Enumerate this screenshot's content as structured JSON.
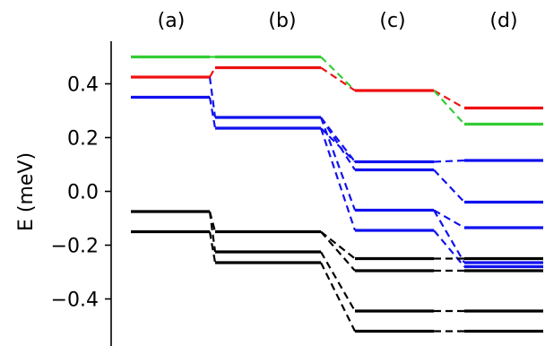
{
  "chart_data": {
    "type": "line",
    "ylabel": "E (meV)",
    "ylim": [
      -0.53,
      0.56
    ],
    "yticks": [
      {
        "value": 0.4,
        "label": "0.4"
      },
      {
        "value": 0.2,
        "label": "0.2"
      },
      {
        "value": 0.0,
        "label": "0.0"
      },
      {
        "value": -0.2,
        "label": "−0.2"
      },
      {
        "value": -0.4,
        "label": "−0.4"
      }
    ],
    "columns": [
      "(a)",
      "(b)",
      "(c)",
      "(d)"
    ],
    "grid": false,
    "legend": "none",
    "colors": {
      "green": "#33cc33",
      "red": "#ee1111",
      "blue": "#1111ee",
      "black": "#000000"
    },
    "levels": [
      {
        "id": "a-green",
        "column": 0,
        "energy": 0.5,
        "color": "green"
      },
      {
        "id": "a-red",
        "column": 0,
        "energy": 0.425,
        "color": "red"
      },
      {
        "id": "a-blue",
        "column": 0,
        "energy": 0.35,
        "color": "blue"
      },
      {
        "id": "a-black1",
        "column": 0,
        "energy": -0.075,
        "color": "black"
      },
      {
        "id": "a-black2",
        "column": 0,
        "energy": -0.15,
        "color": "black"
      },
      {
        "id": "b-green",
        "column": 1,
        "energy": 0.5,
        "color": "green"
      },
      {
        "id": "b-red",
        "column": 1,
        "energy": 0.46,
        "color": "red"
      },
      {
        "id": "b-blue1",
        "column": 1,
        "energy": 0.275,
        "color": "blue"
      },
      {
        "id": "b-blue2",
        "column": 1,
        "energy": 0.235,
        "color": "blue"
      },
      {
        "id": "b-black1",
        "column": 1,
        "energy": -0.15,
        "color": "black"
      },
      {
        "id": "b-black2",
        "column": 1,
        "energy": -0.225,
        "color": "black"
      },
      {
        "id": "b-black3",
        "column": 1,
        "energy": -0.265,
        "color": "black"
      },
      {
        "id": "c-red",
        "column": 2,
        "energy": 0.375,
        "color": "red"
      },
      {
        "id": "c-blue1",
        "column": 2,
        "energy": 0.11,
        "color": "blue"
      },
      {
        "id": "c-blue2",
        "column": 2,
        "energy": 0.08,
        "color": "blue"
      },
      {
        "id": "c-blue3",
        "column": 2,
        "energy": -0.07,
        "color": "blue"
      },
      {
        "id": "c-blue4",
        "column": 2,
        "energy": -0.145,
        "color": "blue"
      },
      {
        "id": "c-black1",
        "column": 2,
        "energy": -0.25,
        "color": "black"
      },
      {
        "id": "c-black2",
        "column": 2,
        "energy": -0.295,
        "color": "black"
      },
      {
        "id": "c-black3",
        "column": 2,
        "energy": -0.445,
        "color": "black"
      },
      {
        "id": "c-black4",
        "column": 2,
        "energy": -0.52,
        "color": "black"
      },
      {
        "id": "d-red",
        "column": 3,
        "energy": 0.31,
        "color": "red"
      },
      {
        "id": "d-green",
        "column": 3,
        "energy": 0.25,
        "color": "green"
      },
      {
        "id": "d-blue1",
        "column": 3,
        "energy": 0.115,
        "color": "blue"
      },
      {
        "id": "d-blue2",
        "column": 3,
        "energy": -0.04,
        "color": "blue"
      },
      {
        "id": "d-blue3",
        "column": 3,
        "energy": -0.135,
        "color": "blue"
      },
      {
        "id": "d-blue4",
        "column": 3,
        "energy": -0.265,
        "color": "blue"
      },
      {
        "id": "d-blue5",
        "column": 3,
        "energy": -0.28,
        "color": "blue"
      },
      {
        "id": "d-black1",
        "column": 3,
        "energy": -0.25,
        "color": "black"
      },
      {
        "id": "d-black2",
        "column": 3,
        "energy": -0.295,
        "color": "black"
      },
      {
        "id": "d-black3",
        "column": 3,
        "energy": -0.445,
        "color": "black"
      },
      {
        "id": "d-black4",
        "column": 3,
        "energy": -0.52,
        "color": "black"
      }
    ],
    "connections": [
      {
        "from": "a-green",
        "to": "b-green",
        "color": "green"
      },
      {
        "from": "a-red",
        "to": "b-red",
        "color": "red"
      },
      {
        "from": "a-red",
        "to": "b-blue1",
        "color": "blue"
      },
      {
        "from": "a-blue",
        "to": "b-blue2",
        "color": "blue"
      },
      {
        "from": "a-black1",
        "to": "b-black1",
        "color": "black"
      },
      {
        "from": "a-black1",
        "to": "b-black2",
        "color": "black"
      },
      {
        "from": "a-black2",
        "to": "b-black3",
        "color": "black"
      },
      {
        "from": "b-green",
        "to": "c-red",
        "color": "green"
      },
      {
        "from": "b-red",
        "to": "c-red",
        "color": "red"
      },
      {
        "from": "b-blue1",
        "to": "c-blue1",
        "color": "blue"
      },
      {
        "from": "b-blue1",
        "to": "c-blue2",
        "color": "blue"
      },
      {
        "from": "b-blue1",
        "to": "c-blue3",
        "color": "blue"
      },
      {
        "from": "b-blue2",
        "to": "c-blue1",
        "color": "blue"
      },
      {
        "from": "b-blue2",
        "to": "c-blue4",
        "color": "blue"
      },
      {
        "from": "b-black1",
        "to": "c-black1",
        "color": "black"
      },
      {
        "from": "b-black1",
        "to": "c-black2",
        "color": "black"
      },
      {
        "from": "b-black2",
        "to": "c-black3",
        "color": "black"
      },
      {
        "from": "b-black3",
        "to": "c-black4",
        "color": "black"
      },
      {
        "from": "c-red",
        "to": "d-red",
        "color": "red"
      },
      {
        "from": "c-red",
        "to": "d-green",
        "color": "green"
      },
      {
        "from": "c-blue1",
        "to": "d-blue1",
        "color": "blue"
      },
      {
        "from": "c-blue2",
        "to": "d-blue2",
        "color": "blue"
      },
      {
        "from": "c-blue3",
        "to": "d-blue3",
        "color": "blue"
      },
      {
        "from": "c-blue3",
        "to": "d-blue4",
        "color": "blue"
      },
      {
        "from": "c-blue4",
        "to": "d-blue5",
        "color": "blue"
      },
      {
        "from": "c-black1",
        "to": "d-black1",
        "color": "black"
      },
      {
        "from": "c-black2",
        "to": "d-black2",
        "color": "black"
      },
      {
        "from": "c-black3",
        "to": "d-black3",
        "color": "black"
      },
      {
        "from": "c-black4",
        "to": "d-black4",
        "color": "black"
      }
    ]
  }
}
